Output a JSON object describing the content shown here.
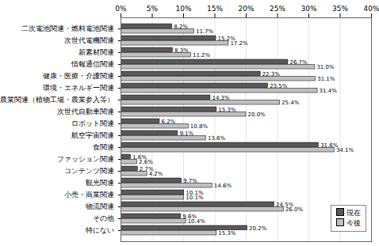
{
  "chart_data": {
    "type": "bar",
    "orientation": "horizontal",
    "grid": true,
    "data_labels": true,
    "legend": "bottom-right",
    "categories": [
      "二次電池関連・燃料電池関連",
      "次世代電機関連",
      "新素材関連",
      "情報通信関連",
      "健康・医療・介護関連",
      "環境・エネルギー関連",
      "農業関連（植物工場・農業参入等）",
      "次世代自動車関連",
      "ロボット関連",
      "航空宇宙関連",
      "食関連",
      "ファッション関連",
      "コンテンツ関連",
      "観光関連",
      "小売・商業関連",
      "物流関連",
      "その他",
      "特にない"
    ],
    "series": [
      {
        "name": "現在",
        "color": "#595959",
        "values": [
          8.2,
          15.2,
          8.3,
          26.7,
          22.3,
          23.5,
          14.3,
          15.3,
          6.2,
          9.1,
          31.6,
          1.6,
          2.7,
          9.7,
          10.1,
          24.5,
          9.6,
          20.2
        ],
        "value_labels": [
          "8.2%",
          "15.2%",
          "8.3%",
          "26.7%",
          "22.3%",
          "23.5%",
          "14.3%",
          "15.3%",
          "6.2%",
          "9.1%",
          "31.6%",
          "1.6%",
          "2.7%",
          "9.7%",
          "10.1%",
          "24.5%",
          "9.6%",
          "20.2%"
        ]
      },
      {
        "name": "今後",
        "color": "#c0c0c0",
        "values": [
          11.7,
          17.2,
          11.2,
          31.0,
          31.1,
          31.4,
          25.4,
          20.0,
          10.8,
          13.6,
          34.1,
          2.6,
          4.2,
          14.6,
          10.1,
          26.0,
          10.4,
          15.3
        ],
        "value_labels": [
          "11.7%",
          "17.2%",
          "11.2%",
          "31.0%",
          "31.1%",
          "31.4%",
          "25.4%",
          "20.0%",
          "10.8%",
          "13.6%",
          "34.1%",
          "2.6%",
          "4.2%",
          "14.6%",
          "10.1%",
          "26.0%",
          "10.4%",
          "15.3%"
        ]
      }
    ],
    "xlim": [
      0,
      40
    ],
    "xticks": [
      {
        "value": 0,
        "label": "0%"
      },
      {
        "value": 5,
        "label": "5%"
      },
      {
        "value": 10,
        "label": "10%"
      },
      {
        "value": 15,
        "label": "15%"
      },
      {
        "value": 20,
        "label": "20%"
      },
      {
        "value": 25,
        "label": "25%"
      },
      {
        "value": 30,
        "label": "30%"
      },
      {
        "value": 35,
        "label": "35%"
      },
      {
        "value": 40,
        "label": "40%"
      }
    ]
  }
}
